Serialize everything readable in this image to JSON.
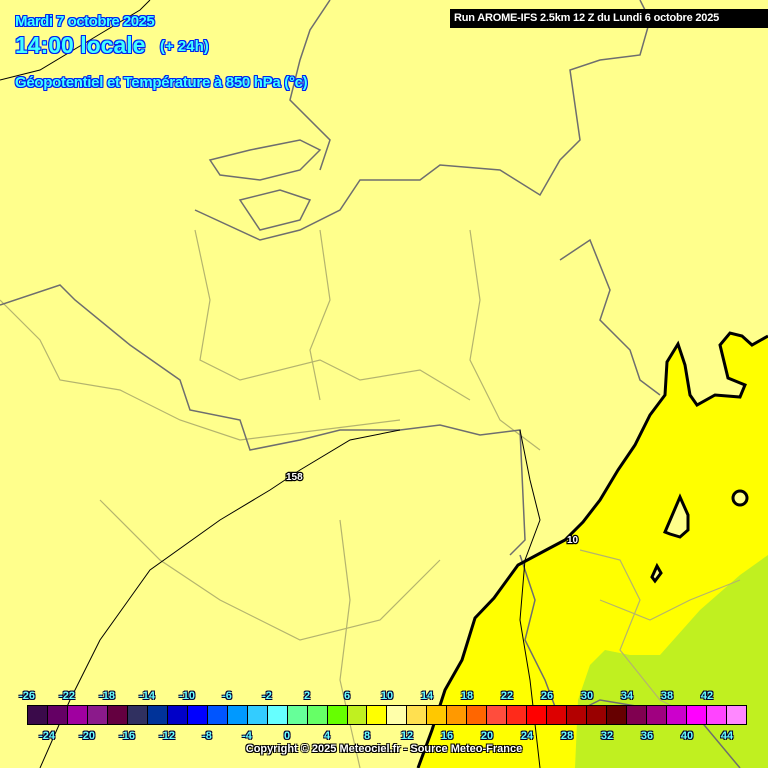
{
  "header": {
    "date": "Mardi 7 octobre 2025",
    "time": "14:00 locale",
    "lead": "(+ 24h)",
    "subtitle": "Géopotentiel et Température à 850 hPa (°c)",
    "run": "Run AROME-IFS 2.5km 12 Z du Lundi 6 octobre 2025"
  },
  "map": {
    "contour_labels": [
      "158",
      "10"
    ],
    "colors": {
      "background": "#ffff8c",
      "temp_10_12": "#ffff00",
      "temp_8_10": "#c0f020",
      "contour": "#000000",
      "border": "#6e6e6e"
    }
  },
  "legend": {
    "top_labels": [
      "-26",
      "-22",
      "-18",
      "-14",
      "-10",
      "-6",
      "-2",
      "2",
      "6",
      "10",
      "14",
      "18",
      "22",
      "26",
      "30",
      "34",
      "38",
      "42"
    ],
    "bottom_labels": [
      "-24",
      "-20",
      "-16",
      "-12",
      "-8",
      "-4",
      "0",
      "4",
      "8",
      "12",
      "16",
      "20",
      "24",
      "28",
      "32",
      "36",
      "40",
      "44"
    ],
    "colors": [
      "#3a0a4a",
      "#640064",
      "#a000a0",
      "#8b1a8b",
      "#640040",
      "#303060",
      "#003399",
      "#0000c8",
      "#0000ff",
      "#0055ff",
      "#0099ff",
      "#33ccff",
      "#66ffff",
      "#66ff99",
      "#66ff66",
      "#66ff00",
      "#c0f020",
      "#ffff00",
      "#ffffaa",
      "#ffe050",
      "#ffc800",
      "#ff9900",
      "#ff6600",
      "#ff4d3d",
      "#ff2a1a",
      "#ff0000",
      "#dd0000",
      "#b30000",
      "#990000",
      "#660000",
      "#800050",
      "#a00080",
      "#cc00cc",
      "#ff00ff",
      "#ff44ff",
      "#ff88ff"
    ]
  },
  "footer": {
    "copyright": "Copyright © 2025 Meteociel.fr - Source Meteo-France"
  }
}
